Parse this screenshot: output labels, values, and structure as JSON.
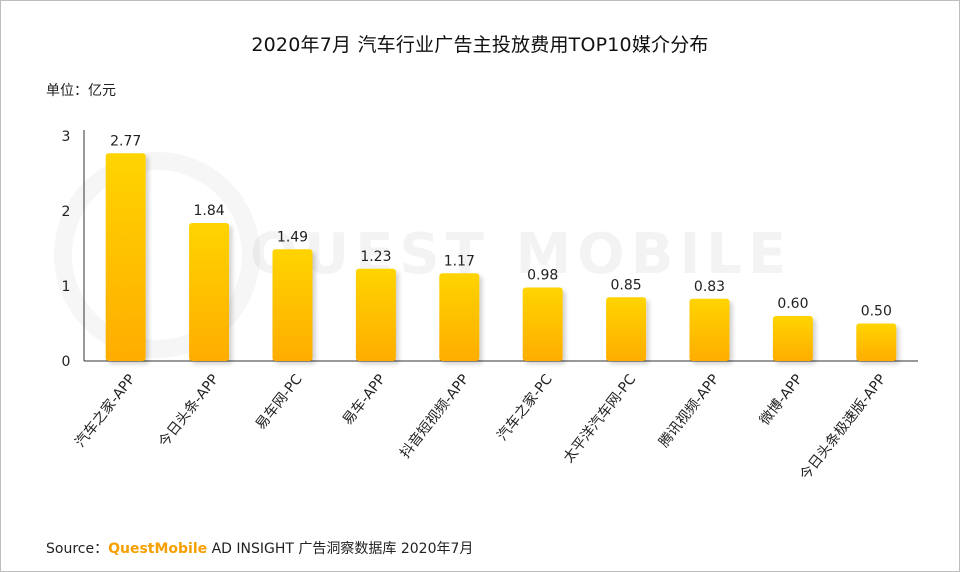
{
  "title": "2020年7月 汽车行业广告主投放费用TOP10媒介分布",
  "unit_label": "单位：亿元",
  "watermark_text": "QUEST MOBILE",
  "source": {
    "prefix": "Source：",
    "brand": "QuestMobile",
    "rest": " AD INSIGHT 广告洞察数据库 2020年7月"
  },
  "colors": {
    "bar_top": "#ffd400",
    "bar_bottom": "#ffad00",
    "axis": "#333333",
    "brand": "#f5a000"
  },
  "chart_data": {
    "type": "bar",
    "title": "2020年7月 汽车行业广告主投放费用TOP10媒介分布",
    "ylabel": "单位：亿元",
    "xlabel": "",
    "ylim": [
      0,
      3
    ],
    "yticks": [
      "0",
      "1",
      "2",
      "3"
    ],
    "grid": false,
    "categories": [
      "汽车之家-APP",
      "今日头条-APP",
      "易车网-PC",
      "易车-APP",
      "抖音短视频-APP",
      "汽车之家-PC",
      "太平洋汽车网-PC",
      "腾讯视频-APP",
      "微博-APP",
      "今日头条极速版-APP"
    ],
    "values": [
      2.77,
      1.84,
      1.49,
      1.23,
      1.17,
      0.98,
      0.85,
      0.83,
      0.6,
      0.5
    ],
    "value_labels": [
      "2.77",
      "1.84",
      "1.49",
      "1.23",
      "1.17",
      "0.98",
      "0.85",
      "0.83",
      "0.60",
      "0.50"
    ]
  }
}
